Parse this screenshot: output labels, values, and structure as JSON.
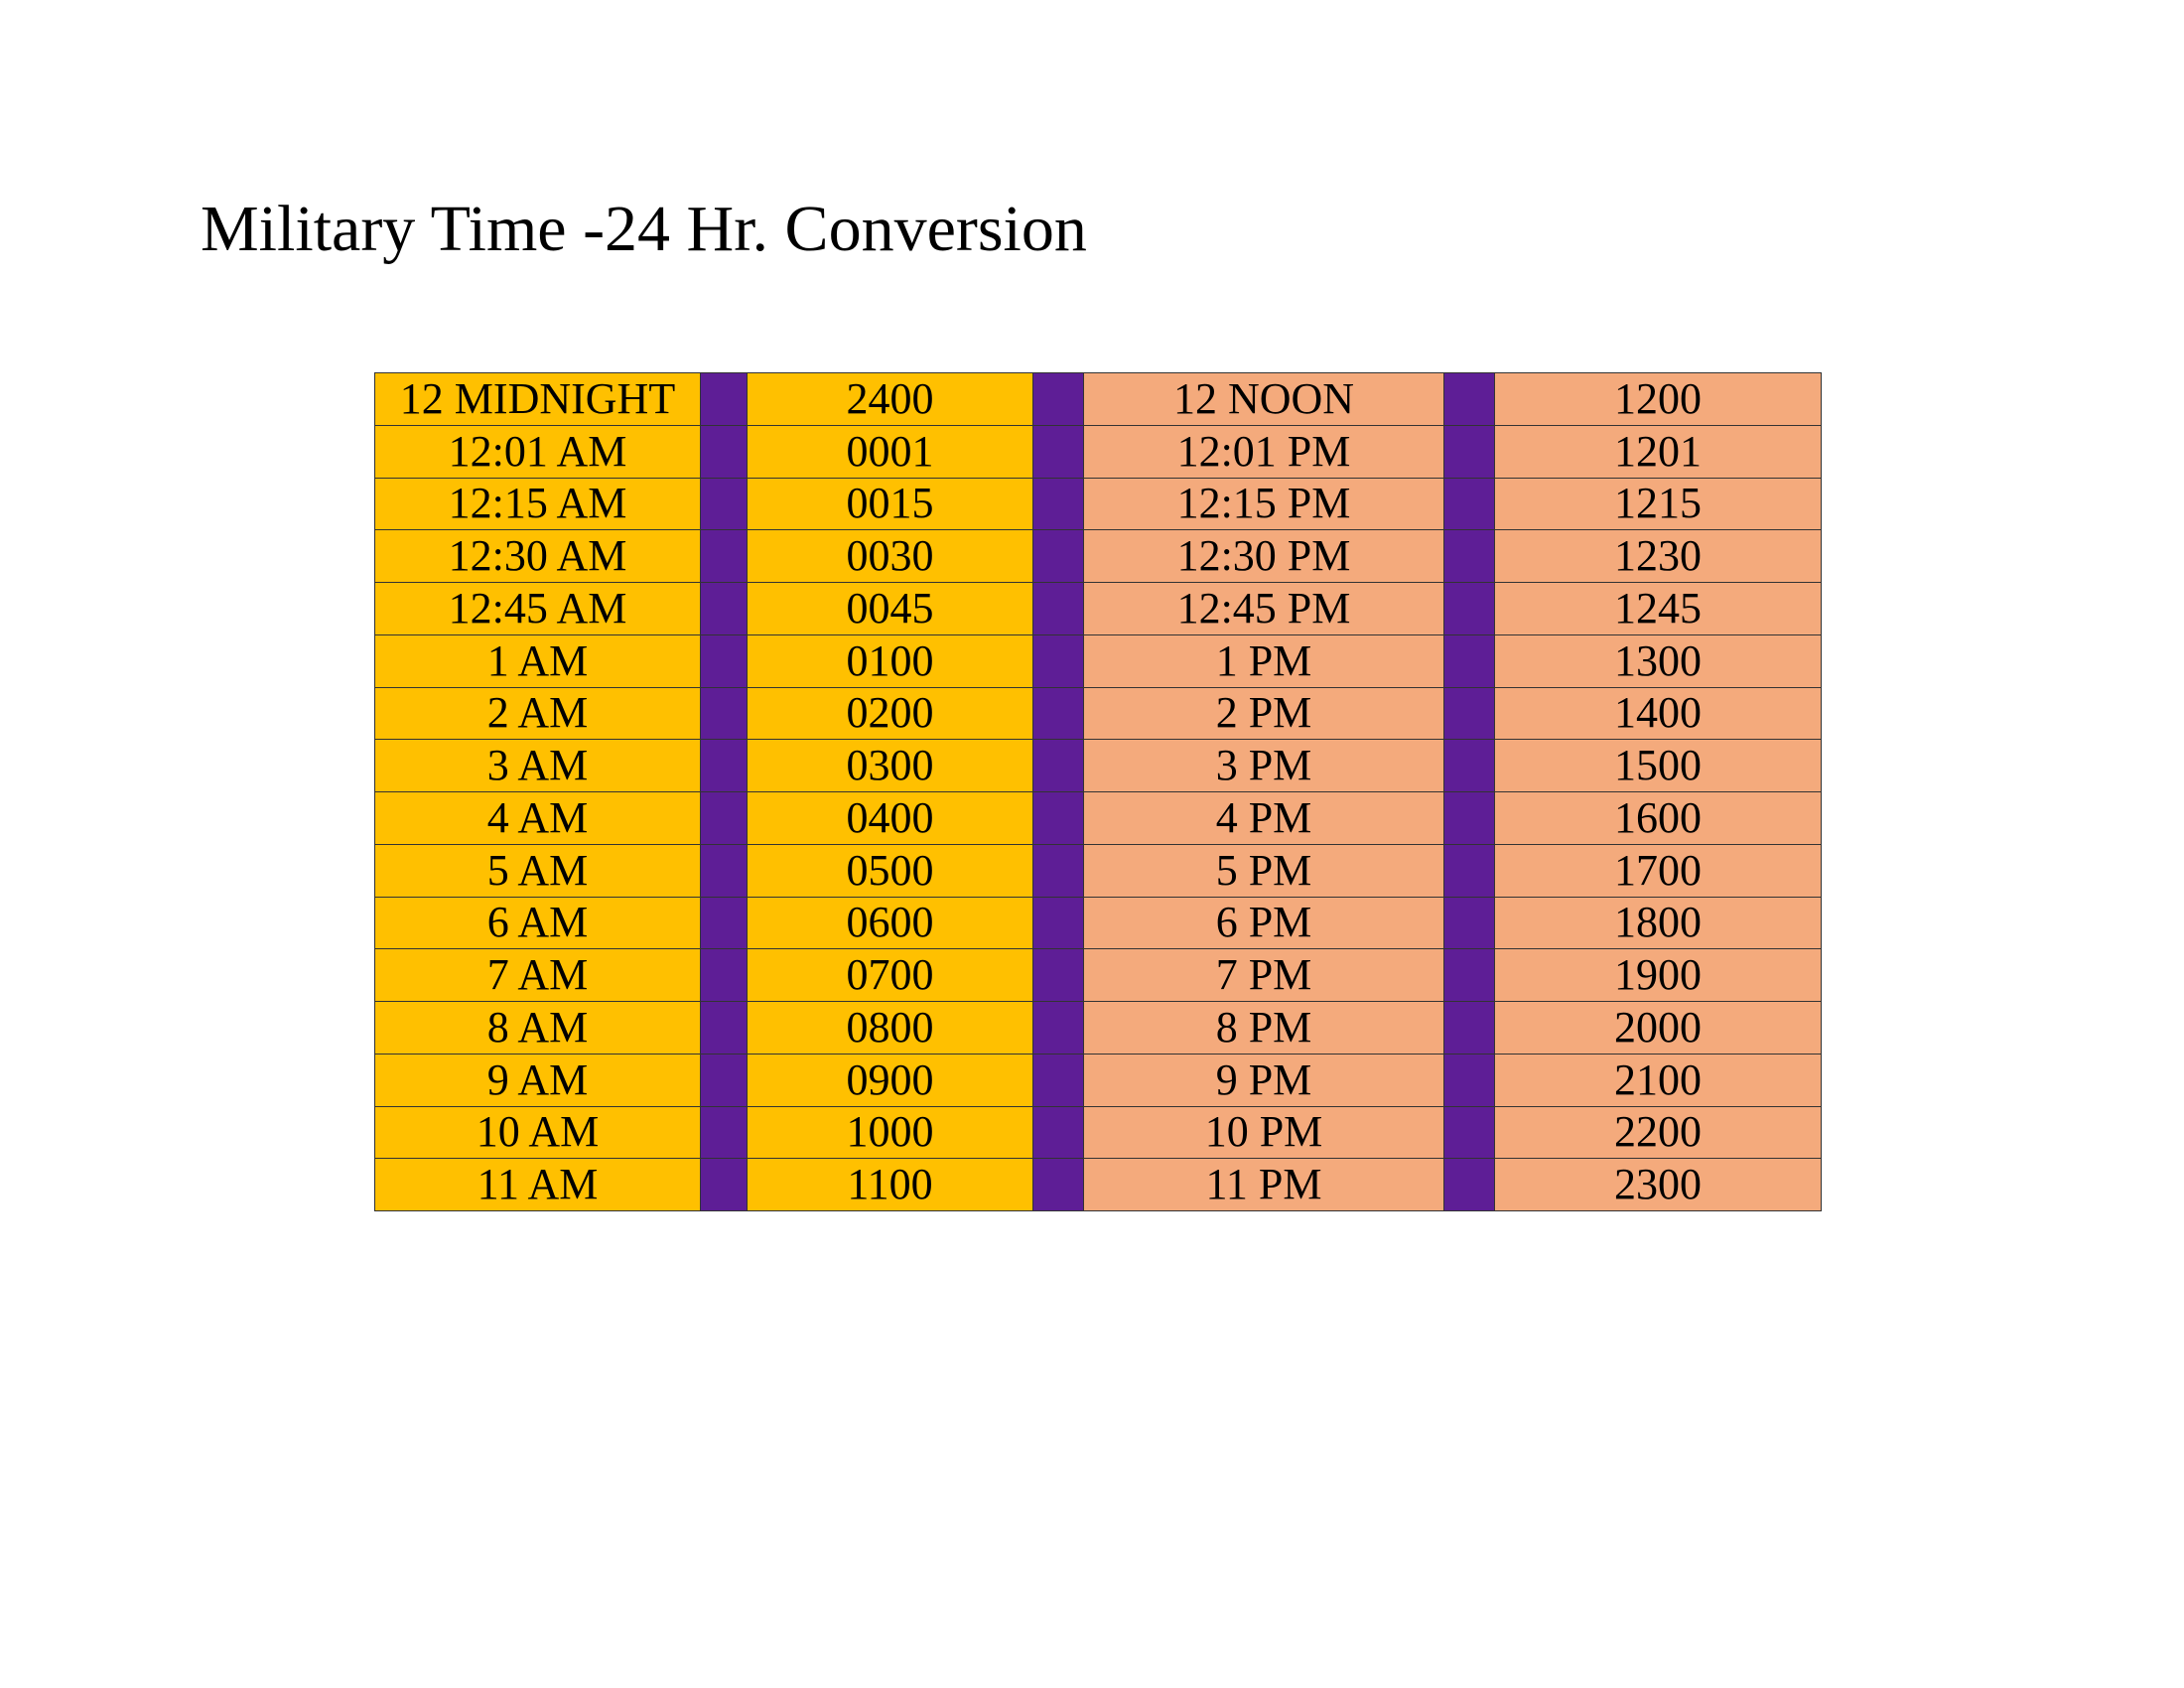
{
  "title": "Military Time -24 Hr. Conversion",
  "colors": {
    "am_block": "#FFC000",
    "pm_block": "#F4AA7C",
    "separator": "#5E1E96",
    "border": "#333333"
  },
  "rows": [
    {
      "am": "12 MIDNIGHT",
      "am_mil": "2400",
      "pm": "12 NOON",
      "pm_mil": "1200"
    },
    {
      "am": "12:01 AM",
      "am_mil": "0001",
      "pm": "12:01 PM",
      "pm_mil": "1201"
    },
    {
      "am": "12:15 AM",
      "am_mil": "0015",
      "pm": "12:15 PM",
      "pm_mil": "1215"
    },
    {
      "am": "12:30 AM",
      "am_mil": "0030",
      "pm": "12:30 PM",
      "pm_mil": "1230"
    },
    {
      "am": "12:45 AM",
      "am_mil": "0045",
      "pm": "12:45 PM",
      "pm_mil": "1245"
    },
    {
      "am": "1 AM",
      "am_mil": "0100",
      "pm": "1 PM",
      "pm_mil": "1300"
    },
    {
      "am": "2 AM",
      "am_mil": "0200",
      "pm": "2 PM",
      "pm_mil": "1400"
    },
    {
      "am": "3 AM",
      "am_mil": "0300",
      "pm": "3 PM",
      "pm_mil": "1500"
    },
    {
      "am": "4 AM",
      "am_mil": "0400",
      "pm": "4 PM",
      "pm_mil": "1600"
    },
    {
      "am": "5 AM",
      "am_mil": "0500",
      "pm": "5 PM",
      "pm_mil": "1700"
    },
    {
      "am": "6 AM",
      "am_mil": "0600",
      "pm": "6 PM",
      "pm_mil": "1800"
    },
    {
      "am": "7 AM",
      "am_mil": "0700",
      "pm": "7 PM",
      "pm_mil": "1900"
    },
    {
      "am": "8 AM",
      "am_mil": "0800",
      "pm": "8 PM",
      "pm_mil": "2000"
    },
    {
      "am": "9 AM",
      "am_mil": "0900",
      "pm": "9 PM",
      "pm_mil": "2100"
    },
    {
      "am": "10 AM",
      "am_mil": "1000",
      "pm": "10 PM",
      "pm_mil": "2200"
    },
    {
      "am": "11 AM",
      "am_mil": "1100",
      "pm": "11 PM",
      "pm_mil": "2300"
    }
  ]
}
